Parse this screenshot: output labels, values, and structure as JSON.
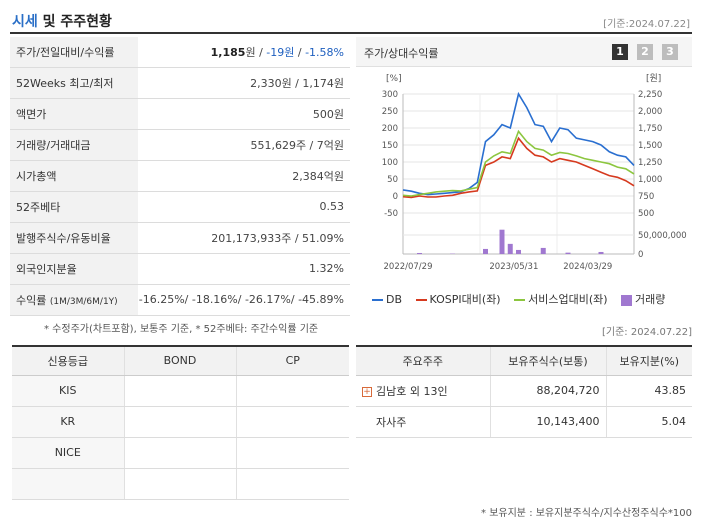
{
  "header": {
    "title_part1": "시세",
    "title_part2": " 및 주주현황",
    "base_date": "[기준:2024.07.22]"
  },
  "price_table": {
    "rows": [
      {
        "label": "주가/전일대비/수익률",
        "v1": "1,185",
        "u1": "원",
        "sep1": " / ",
        "v2": "-19",
        "u2": "원",
        "sep2": " / ",
        "v3": "-1.58%"
      },
      {
        "label": "52Weeks 최고/최저",
        "value": "2,330원 / 1,174원"
      },
      {
        "label": "액면가",
        "value": "500원"
      },
      {
        "label": "거래량/거래대금",
        "value": "551,629주 / 7억원"
      },
      {
        "label": "시가총액",
        "value": "2,384억원"
      },
      {
        "label": "52주베타",
        "value": "0.53"
      },
      {
        "label": "발행주식수/유동비율",
        "value": "201,173,933주 / 51.09%"
      },
      {
        "label": "외국인지분율",
        "value": "1.32%"
      },
      {
        "label": "수익률",
        "sub": "(1M/3M/6M/1Y)",
        "value": "-16.25%/ -18.16%/ -26.17%/ -45.89%"
      }
    ],
    "note": "* 수정주가(차트포함), 보통주 기준, * 52주베타: 주간수익률 기준"
  },
  "chart_panel": {
    "title": "주가/상대수익률",
    "pages": [
      "1",
      "2",
      "3"
    ]
  },
  "chart_data": {
    "type": "line",
    "left_axis_unit": "[%]",
    "right_axis_unit": "[원]",
    "left_ticks": [
      "300",
      "250",
      "200",
      "150",
      "100",
      "50",
      "0",
      "-50"
    ],
    "right_ticks": [
      "2,250",
      "2,000",
      "1,750",
      "1,500",
      "1,250",
      "1,000",
      "750",
      "500"
    ],
    "volume_ticks": [
      "50,000,000",
      "0"
    ],
    "x_ticks": [
      "2022/07/29",
      "2023/05/31",
      "2024/03/29"
    ],
    "ylim_left": [
      -50,
      300
    ],
    "volume_max": 80000000,
    "series": [
      {
        "name": "DB",
        "color": "#2a6fd0",
        "values": [
          18,
          14,
          8,
          4,
          6,
          8,
          10,
          12,
          22,
          40,
          160,
          180,
          210,
          200,
          300,
          260,
          210,
          205,
          160,
          200,
          195,
          170,
          165,
          160,
          150,
          130,
          120,
          115,
          90
        ]
      },
      {
        "name": "KOSPI대비(좌)",
        "color": "#d63a1f",
        "values": [
          -2,
          -4,
          0,
          -3,
          -3,
          0,
          2,
          8,
          12,
          15,
          90,
          100,
          115,
          110,
          170,
          140,
          120,
          115,
          100,
          110,
          105,
          100,
          90,
          80,
          70,
          60,
          55,
          45,
          30
        ]
      },
      {
        "name": "서비스업대비(좌)",
        "color": "#8cc63f",
        "values": [
          2,
          0,
          4,
          8,
          12,
          14,
          16,
          15,
          20,
          25,
          100,
          118,
          130,
          125,
          190,
          160,
          140,
          135,
          120,
          128,
          125,
          118,
          110,
          105,
          100,
          95,
          85,
          80,
          65
        ]
      }
    ],
    "volume": {
      "name": "거래량",
      "color": "#a078d0",
      "values": [
        0,
        0,
        3000000,
        0,
        0,
        0,
        1000000,
        0,
        0,
        0,
        15000000,
        0,
        72000000,
        30000000,
        12000000,
        0,
        0,
        18000000,
        0,
        0,
        4000000,
        0,
        0,
        0,
        6000000,
        0,
        0,
        0,
        0
      ]
    }
  },
  "footer_date": "[기준: 2024.07.22]",
  "credit_table": {
    "headers": [
      "신용등급",
      "BOND",
      "CP"
    ],
    "rows": [
      {
        "agency": "KIS",
        "bond": "",
        "cp": ""
      },
      {
        "agency": "KR",
        "bond": "",
        "cp": ""
      },
      {
        "agency": "NICE",
        "bond": "",
        "cp": ""
      },
      {
        "agency": "",
        "bond": "",
        "cp": ""
      }
    ]
  },
  "holders_table": {
    "headers": [
      "주요주주",
      "보유주식수(보통)",
      "보유지분(%)"
    ],
    "rows": [
      {
        "name": "김남호 외 13인",
        "shares": "88,204,720",
        "pct": "43.85",
        "expandable": true
      },
      {
        "name": "자사주",
        "shares": "10,143,400",
        "pct": "5.04",
        "expandable": false
      }
    ],
    "note": "* 보유지분 : 보유지분주식수/지수산정주식수*100"
  }
}
